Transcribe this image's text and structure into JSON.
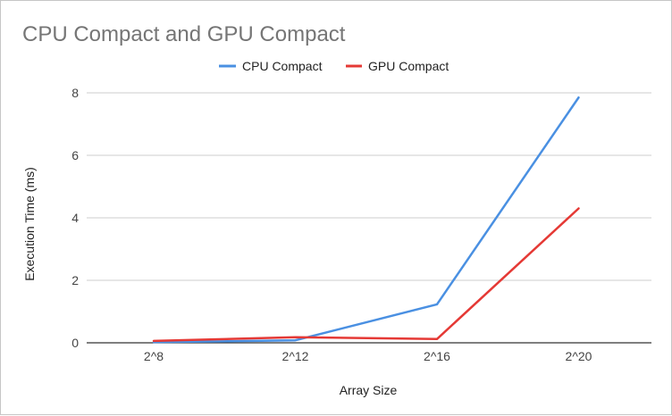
{
  "chart_data": {
    "type": "line",
    "title": "CPU Compact and GPU Compact",
    "xlabel": "Array Size",
    "ylabel": "Execution Time (ms)",
    "categories": [
      "2^8",
      "2^12",
      "2^16",
      "2^20"
    ],
    "ylim": [
      0,
      8
    ],
    "yticks": [
      "0",
      "2",
      "4",
      "6",
      "8"
    ],
    "grid": true,
    "legend_position": "top",
    "series": [
      {
        "name": "CPU Compact",
        "color": "#4a90e2",
        "values": [
          0.02,
          0.08,
          1.23,
          7.85
        ]
      },
      {
        "name": "GPU Compact",
        "color": "#e53935",
        "values": [
          0.06,
          0.18,
          0.12,
          4.3
        ]
      }
    ]
  }
}
